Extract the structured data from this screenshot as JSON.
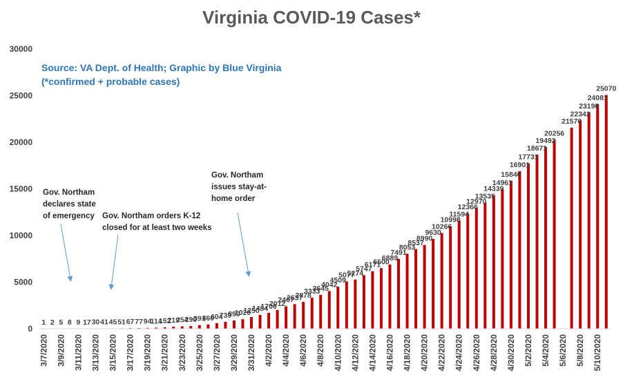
{
  "chart_data": {
    "type": "bar",
    "title": "Virginia COVID-19 Cases*",
    "subtitle_lines": [
      "Source: VA Dept. of Health; Graphic by Blue Virginia",
      "(*confirmed + probable cases)"
    ],
    "ylim": [
      0,
      30000
    ],
    "yticks": [
      0,
      5000,
      10000,
      15000,
      20000,
      25000,
      30000
    ],
    "grid": false,
    "bar_color": "#c00000",
    "start_date": "2020-03-07",
    "x_tick_labels": [
      "3/7/2020",
      "3/9/2020",
      "3/11/2020",
      "3/13/2020",
      "3/15/2020",
      "3/17/2020",
      "3/19/2020",
      "3/21/2020",
      "3/23/2020",
      "3/25/2020",
      "3/27/2020",
      "3/29/2020",
      "3/31/2020",
      "4/2/2020",
      "4/4/2020",
      "4/6/2020",
      "4/8/2020",
      "4/10/2020",
      "4/12/2020",
      "4/14/2020",
      "4/16/2020",
      "4/18/2020",
      "4/20/2020",
      "4/22/2020",
      "4/24/2020",
      "4/26/2020",
      "4/28/2020",
      "4/30/2020",
      "5/2/2020",
      "5/4/2020",
      "5/6/2020",
      "5/8/2020",
      "5/10/2020"
    ],
    "values": [
      1,
      2,
      5,
      8,
      9,
      17,
      30,
      41,
      45,
      51,
      67,
      77,
      94,
      114,
      152,
      219,
      254,
      290,
      391,
      460,
      604,
      739,
      890,
      1020,
      1250,
      1484,
      1706,
      2012,
      2407,
      2637,
      2878,
      3333,
      3645,
      4042,
      4509,
      5077,
      5274,
      5747,
      6171,
      6500,
      6889,
      7491,
      8053,
      8537,
      8990,
      9630,
      10266,
      10998,
      11594,
      12366,
      12970,
      13535,
      14339,
      14961,
      15846,
      16901,
      17731,
      18671,
      19492,
      20256,
      null,
      21570,
      22342,
      23196,
      24081,
      25070
    ],
    "value_labels": [
      "1",
      "2",
      "5",
      "8",
      "9",
      "17",
      "30",
      "41",
      "45",
      "51",
      "67",
      "77",
      "94",
      "114",
      "152",
      "219",
      "254",
      "290",
      "391",
      "460",
      "604",
      "739",
      "890",
      "1020",
      "1250",
      "1484",
      "1706",
      "2012",
      "2407",
      "2637",
      "2878",
      "3333",
      "3645",
      "4042",
      "4509",
      "5077",
      "5274",
      "5747",
      "6171",
      "6500",
      "6889",
      "7491",
      "8053",
      "8537",
      "8990",
      "9630",
      "10266",
      "10998",
      "11594",
      "12366",
      "12970",
      "13535",
      "14339",
      "14961",
      "15846",
      "16901",
      "17731",
      "18671",
      "19492",
      "20256",
      "",
      "21570",
      "22342",
      "23196",
      "24081",
      "25070"
    ],
    "annotations": [
      {
        "lines": [
          "Gov. Northam",
          "declares state",
          "of emergency"
        ]
      },
      {
        "lines": [
          "Gov. Northam orders K-12",
          "closed  for at least two weeks"
        ]
      },
      {
        "lines": [
          "Gov. Northam",
          "issues stay-at-",
          "home order"
        ]
      }
    ]
  }
}
